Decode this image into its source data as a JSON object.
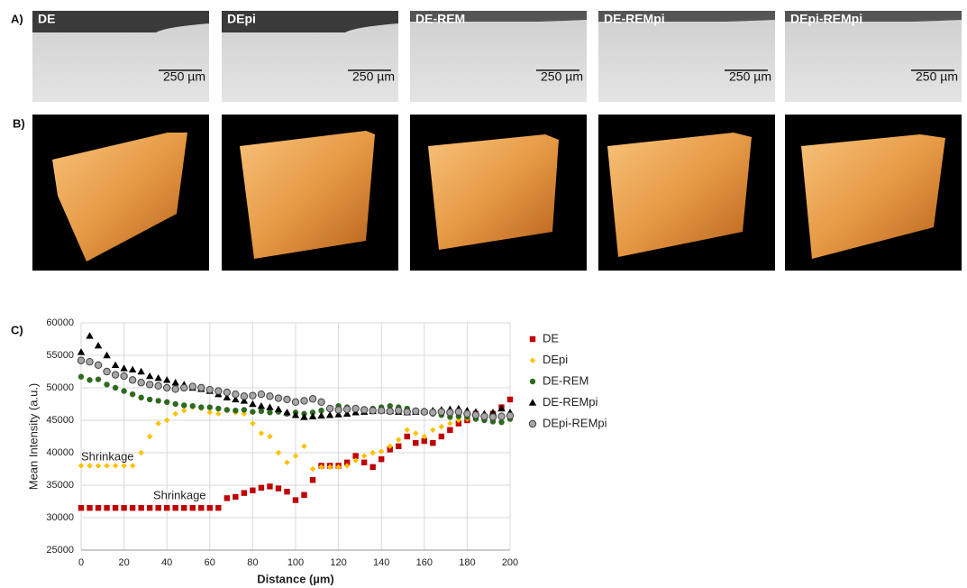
{
  "panels": {
    "a": {
      "label": "A)",
      "images": [
        {
          "label": "DE",
          "scale": "250 µm"
        },
        {
          "label": "DEpi",
          "scale": "250 µm"
        },
        {
          "label": "DE-REM",
          "scale": "250 µm"
        },
        {
          "label": "DE-REMpi",
          "scale": "250 µm"
        },
        {
          "label": "DEpi-REMpi",
          "scale": "250 µm"
        }
      ]
    },
    "b": {
      "label": "B)"
    },
    "c": {
      "label": "C)"
    }
  },
  "chart_data": {
    "type": "scatter",
    "x_label": "Distance (µm)",
    "y_label": "Mean Intensity  (a.u.)",
    "xlim": [
      0,
      200
    ],
    "xticks": [
      0,
      20,
      40,
      60,
      80,
      100,
      120,
      140,
      160,
      180,
      200
    ],
    "ylim": [
      25000,
      60000
    ],
    "yticks": [
      25000,
      30000,
      35000,
      40000,
      45000,
      50000,
      55000,
      60000
    ],
    "grid": true,
    "legend": "right",
    "annotations": [
      "Shrinkage",
      "Shrinkage"
    ],
    "x": [
      0,
      4,
      8,
      12,
      16,
      20,
      24,
      28,
      32,
      36,
      40,
      44,
      48,
      52,
      56,
      60,
      64,
      68,
      72,
      76,
      80,
      84,
      88,
      92,
      96,
      100,
      104,
      108,
      112,
      116,
      120,
      124,
      128,
      132,
      136,
      140,
      144,
      148,
      152,
      156,
      160,
      164,
      168,
      172,
      176,
      180,
      184,
      188,
      192,
      196,
      200
    ],
    "series": [
      {
        "name": "DE",
        "color": "#c00000",
        "marker": "square",
        "values": [
          31500,
          31500,
          31500,
          31500,
          31500,
          31500,
          31500,
          31500,
          31500,
          31500,
          31500,
          31500,
          31500,
          31500,
          31500,
          31500,
          31500,
          33000,
          33200,
          33800,
          34200,
          34600,
          34800,
          34500,
          34000,
          32700,
          33500,
          35800,
          38000,
          38000,
          38000,
          38500,
          39500,
          38500,
          37800,
          39000,
          40500,
          41000,
          42500,
          41500,
          41800,
          41500,
          42500,
          43500,
          44500,
          45000,
          46000,
          45500,
          46000,
          47000,
          48200
        ]
      },
      {
        "name": "DEpi",
        "color": "#ffc000",
        "marker": "diamond",
        "values": [
          38000,
          38000,
          38000,
          38000,
          38000,
          38000,
          38000,
          40000,
          42500,
          44500,
          45000,
          46000,
          46500,
          47000,
          46800,
          46200,
          46000,
          46500,
          46200,
          46000,
          44500,
          43000,
          42500,
          40000,
          38500,
          39500,
          41000,
          37500,
          37800,
          37800,
          37800,
          38000,
          38800,
          39500,
          40000,
          40200,
          41000,
          42000,
          43500,
          43000,
          42500,
          43500,
          44000,
          44500,
          45000,
          45200,
          45500,
          45000,
          45500,
          45800,
          46000
        ]
      },
      {
        "name": "DE-REM",
        "color": "#2e6b1f",
        "marker": "circle",
        "values": [
          51700,
          51200,
          51300,
          50500,
          50000,
          49500,
          49000,
          48500,
          48200,
          48000,
          47800,
          47500,
          47300,
          47200,
          47000,
          47000,
          46800,
          46600,
          46500,
          46600,
          46300,
          46400,
          46200,
          46300,
          46000,
          46200,
          46000,
          46200,
          46500,
          46800,
          47200,
          47000,
          46800,
          46700,
          46800,
          47000,
          47200,
          47000,
          46800,
          46500,
          46200,
          46000,
          45800,
          45500,
          45600,
          45500,
          45200,
          45000,
          44800,
          44700,
          45200
        ]
      },
      {
        "name": "DE-REMpi",
        "color": "#000000",
        "marker": "triangle",
        "values": [
          55500,
          58000,
          56500,
          55000,
          53500,
          53000,
          52800,
          52500,
          51800,
          51500,
          51200,
          50800,
          50500,
          50000,
          49800,
          49500,
          49000,
          48500,
          48200,
          48000,
          47500,
          47200,
          47000,
          46700,
          46200,
          45800,
          45500,
          45600,
          45700,
          45800,
          45900,
          46000,
          46200,
          46300,
          46400,
          46500,
          46400,
          46300,
          46200,
          46300,
          46400,
          46500,
          46600,
          46700,
          46800,
          46500,
          46300,
          46000,
          46200,
          46800,
          46200
        ]
      },
      {
        "name": "DEpi-REMpi",
        "color": "#a6a6a6",
        "marker": "ring",
        "values": [
          54200,
          54000,
          53500,
          52500,
          52000,
          51800,
          51200,
          50800,
          50500,
          50300,
          50000,
          49800,
          50000,
          50200,
          50000,
          49700,
          49500,
          49300,
          49000,
          48700,
          48800,
          49000,
          48700,
          48400,
          48200,
          47800,
          48000,
          48300,
          47800,
          46800,
          46600,
          46700,
          46800,
          46600,
          46500,
          46500,
          46400,
          46500,
          46300,
          46400,
          46300,
          46200,
          46300,
          46200,
          46300,
          46000,
          45800,
          45600,
          45500,
          45600,
          45700
        ]
      }
    ]
  }
}
